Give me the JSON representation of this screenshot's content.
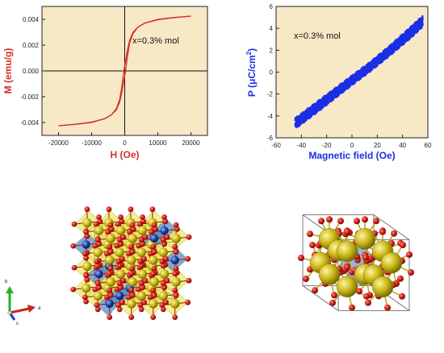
{
  "chart_data": [
    {
      "type": "line",
      "panel": "magnetization-hysteresis",
      "xlabel": "H (Oe)",
      "ylabel": "M (emu/g)",
      "xlim": [
        -25000,
        25000
      ],
      "ylim": [
        -0.005,
        0.005
      ],
      "xticks": [
        "-20000",
        "-10000",
        "0",
        "10000",
        "20000"
      ],
      "xtick_values": [
        -20000,
        -10000,
        0,
        10000,
        20000
      ],
      "yticks": [
        "-0.004",
        "-0.002",
        "0.000",
        "0.002",
        "0.004"
      ],
      "ytick_values": [
        -0.004,
        -0.002,
        0,
        0.002,
        0.004
      ],
      "annotation": "x=0.3% mol",
      "background": "#f7e8c6",
      "series_color": "#d63025",
      "label_color": "#d63025",
      "series": [
        {
          "branch": "descending",
          "x": [
            20000,
            15000,
            10000,
            6000,
            4000,
            2500,
            1500,
            800,
            300,
            0,
            -300,
            -800,
            -1500,
            -2500,
            -4000,
            -6000,
            -10000,
            -15000,
            -20000
          ],
          "y": [
            0.00425,
            0.00413,
            0.00397,
            0.0037,
            0.0034,
            0.003,
            0.0024,
            0.0016,
            0.0008,
            0.0004,
            -0.0001,
            -0.0011,
            -0.0022,
            -0.0029,
            -0.0034,
            -0.0037,
            -0.004,
            -0.00415,
            -0.00425
          ]
        },
        {
          "branch": "ascending",
          "x": [
            -20000,
            -15000,
            -10000,
            -6000,
            -4000,
            -2500,
            -1500,
            -800,
            -300,
            0,
            300,
            800,
            1500,
            2500,
            4000,
            6000,
            10000,
            15000,
            20000
          ],
          "y": [
            -0.00425,
            -0.00413,
            -0.00397,
            -0.0037,
            -0.0034,
            -0.003,
            -0.0024,
            -0.0016,
            -0.0008,
            -0.0004,
            0.0001,
            0.0011,
            0.0022,
            0.0029,
            0.0034,
            0.0037,
            0.004,
            0.00415,
            0.00425
          ]
        }
      ]
    },
    {
      "type": "line",
      "panel": "polarization-vs-field",
      "xlabel": "Magnetic field (Oe)",
      "ylabel_main": "P (",
      "ylabel_mu": "μ",
      "ylabel_unit": "C/cm",
      "ylabel_sup": "2",
      "ylabel_close": ")",
      "xlim": [
        -60,
        60
      ],
      "ylim": [
        -6,
        6
      ],
      "xticks": [
        "-60",
        "-40",
        "-20",
        "0",
        "20",
        "40",
        "60"
      ],
      "xtick_values": [
        -60,
        -40,
        -20,
        0,
        20,
        40,
        60
      ],
      "yticks": [
        "-6",
        "-4",
        "-2",
        "0",
        "2",
        "4",
        "6"
      ],
      "ytick_values": [
        -6,
        -4,
        -2,
        0,
        2,
        4,
        6
      ],
      "annotation": "x=0.3% mol",
      "background": "#f7e8c6",
      "series_color": "#1a2ee6",
      "label_color": "#1a2ee6",
      "series": [
        {
          "branch": "upper",
          "x": [
            -45,
            -30,
            -15,
            0,
            15,
            30,
            45,
            56
          ],
          "y": [
            -4.45,
            -3.15,
            -1.85,
            -0.55,
            0.75,
            2.2,
            3.75,
            4.9
          ]
        },
        {
          "branch": "lower",
          "x": [
            -45,
            -30,
            -15,
            0,
            15,
            30,
            45,
            56
          ],
          "y": [
            -4.95,
            -3.65,
            -2.3,
            -0.95,
            0.35,
            1.75,
            3.2,
            4.4
          ]
        }
      ]
    }
  ],
  "structures": {
    "axis_labels": {
      "b": "b",
      "a": "a",
      "c": "c"
    },
    "colors": {
      "oxygen": "#cc1a12",
      "cation_a": "#c7b413",
      "cation_b": "#1b3d9c",
      "polyhedron_a": "#eadf3a",
      "polyhedron_b": "#4f86c6"
    }
  }
}
